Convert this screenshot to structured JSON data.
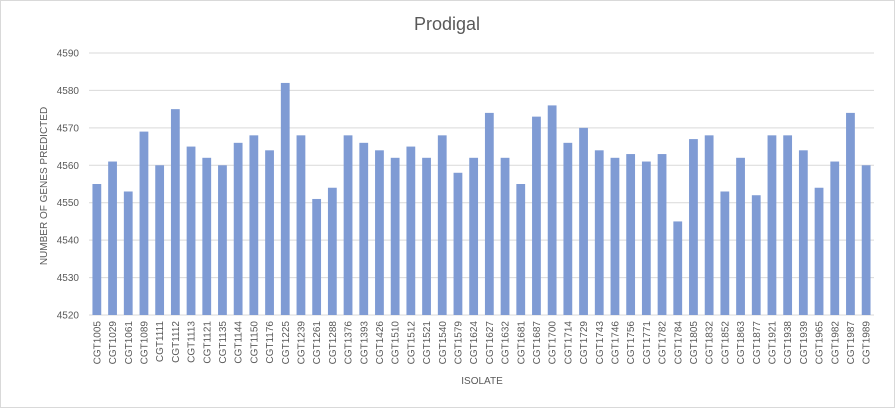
{
  "chart_data": {
    "type": "bar",
    "title": "Prodigal",
    "xlabel": "ISOLATE",
    "ylabel": "NUMBER OF GENES PREDICTED",
    "ylim": [
      4520,
      4590
    ],
    "yticks": [
      4520,
      4530,
      4540,
      4550,
      4560,
      4570,
      4580,
      4590
    ],
    "grid": true,
    "legend": "none",
    "bar_color": "#7f9bd4",
    "categories": [
      "CGT1005",
      "CGT1029",
      "CGT1061",
      "CGT1089",
      "CGT1111",
      "CGT1112",
      "CGT1113",
      "CGT1121",
      "CGT1135",
      "CGT1144",
      "CGT1150",
      "CGT1176",
      "CGT1225",
      "CGT1239",
      "CGT1261",
      "CGT1288",
      "CGT1376",
      "CGT1393",
      "CGT1426",
      "CGT1510",
      "CGT1512",
      "CGT1521",
      "CGT1540",
      "CGT1579",
      "CGT1624",
      "CGT1627",
      "CGT1632",
      "CGT1681",
      "CGT1687",
      "CGT1700",
      "CGT1714",
      "CGT1729",
      "CGT1743",
      "CGT1746",
      "CGT1756",
      "CGT1771",
      "CGT1782",
      "CGT1784",
      "CGT1805",
      "CGT1832",
      "CGT1852",
      "CGT1863",
      "CGT1877",
      "CGT1921",
      "CGT1938",
      "CGT1939",
      "CGT1965",
      "CGT1982",
      "CGT1987",
      "CGT1989"
    ],
    "values": [
      4555,
      4561,
      4553,
      4569,
      4560,
      4575,
      4565,
      4562,
      4560,
      4566,
      4568,
      4564,
      4582,
      4568,
      4551,
      4554,
      4568,
      4566,
      4564,
      4562,
      4565,
      4562,
      4568,
      4558,
      4562,
      4574,
      4562,
      4555,
      4573,
      4576,
      4566,
      4570,
      4564,
      4562,
      4563,
      4561,
      4563,
      4545,
      4567,
      4568,
      4553,
      4562,
      4552,
      4568,
      4568,
      4564,
      4554,
      4561,
      4574,
      4560
    ]
  }
}
